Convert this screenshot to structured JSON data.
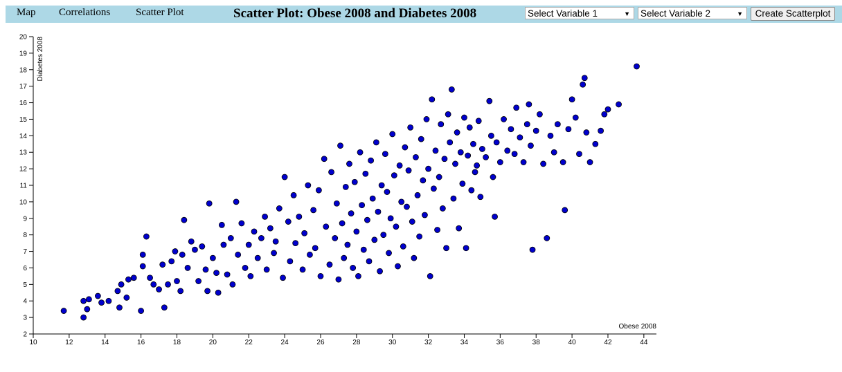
{
  "nav": {
    "map": "Map",
    "correlations": "Correlations",
    "scatter_plot": "Scatter Plot"
  },
  "title": "Scatter Plot: Obese 2008 and Diabetes 2008",
  "controls": {
    "select1": "Select Variable 1",
    "select2": "Select Variable 2",
    "create_button": "Create Scatterplot"
  },
  "colors": {
    "navbar": "#add8e6",
    "point_fill": "#0000cd",
    "point_stroke": "#000000"
  },
  "chart_data": {
    "type": "scatter",
    "xlabel": "Obese 2008",
    "ylabel": "Diabetes 2008",
    "xlim": [
      10,
      44.7
    ],
    "ylim": [
      2,
      20
    ],
    "x_ticks": [
      10,
      12,
      14,
      16,
      18,
      20,
      22,
      24,
      26,
      28,
      30,
      32,
      34,
      36,
      38,
      40,
      42,
      44
    ],
    "y_ticks": [
      2,
      3,
      4,
      5,
      6,
      7,
      8,
      9,
      10,
      11,
      12,
      13,
      14,
      15,
      16,
      17,
      18,
      19,
      20
    ],
    "grid": false,
    "series": [
      {
        "points": [
          [
            11.7,
            3.4
          ],
          [
            12.8,
            3.0
          ],
          [
            12.8,
            4.0
          ],
          [
            13.0,
            3.5
          ],
          [
            13.1,
            4.1
          ],
          [
            13.6,
            4.3
          ],
          [
            13.8,
            3.9
          ],
          [
            14.2,
            4.0
          ],
          [
            14.7,
            4.6
          ],
          [
            14.8,
            3.6
          ],
          [
            14.9,
            5.0
          ],
          [
            15.2,
            4.2
          ],
          [
            15.3,
            5.3
          ],
          [
            15.6,
            5.4
          ],
          [
            16.0,
            3.4
          ],
          [
            16.1,
            6.1
          ],
          [
            16.1,
            6.8
          ],
          [
            16.3,
            7.9
          ],
          [
            16.5,
            5.4
          ],
          [
            16.7,
            5.0
          ],
          [
            17.0,
            4.7
          ],
          [
            17.2,
            6.2
          ],
          [
            17.3,
            3.6
          ],
          [
            17.5,
            5.0
          ],
          [
            17.7,
            6.4
          ],
          [
            17.9,
            7.0
          ],
          [
            18.0,
            5.2
          ],
          [
            18.2,
            4.6
          ],
          [
            18.3,
            6.8
          ],
          [
            18.4,
            8.9
          ],
          [
            18.6,
            6.0
          ],
          [
            18.8,
            7.6
          ],
          [
            19.0,
            7.1
          ],
          [
            19.2,
            5.2
          ],
          [
            19.4,
            7.3
          ],
          [
            19.6,
            5.9
          ],
          [
            19.7,
            4.6
          ],
          [
            19.8,
            9.9
          ],
          [
            20.0,
            6.6
          ],
          [
            20.2,
            5.7
          ],
          [
            20.3,
            4.5
          ],
          [
            20.5,
            8.6
          ],
          [
            20.6,
            7.4
          ],
          [
            20.8,
            5.6
          ],
          [
            21.0,
            7.8
          ],
          [
            21.1,
            5.0
          ],
          [
            21.3,
            10.0
          ],
          [
            21.4,
            6.8
          ],
          [
            21.6,
            8.7
          ],
          [
            21.8,
            6.0
          ],
          [
            22.0,
            7.4
          ],
          [
            22.1,
            5.5
          ],
          [
            22.3,
            8.2
          ],
          [
            22.5,
            6.6
          ],
          [
            22.7,
            7.8
          ],
          [
            22.9,
            9.1
          ],
          [
            23.0,
            5.9
          ],
          [
            23.2,
            8.4
          ],
          [
            23.4,
            6.9
          ],
          [
            23.5,
            7.6
          ],
          [
            23.7,
            9.6
          ],
          [
            23.9,
            5.4
          ],
          [
            24.0,
            11.5
          ],
          [
            24.2,
            8.8
          ],
          [
            24.3,
            6.4
          ],
          [
            24.5,
            10.4
          ],
          [
            24.6,
            7.5
          ],
          [
            24.8,
            9.1
          ],
          [
            25.0,
            5.9
          ],
          [
            25.1,
            8.1
          ],
          [
            25.3,
            11.0
          ],
          [
            25.4,
            6.8
          ],
          [
            25.6,
            9.5
          ],
          [
            25.7,
            7.2
          ],
          [
            25.9,
            10.7
          ],
          [
            26.0,
            5.5
          ],
          [
            26.2,
            12.6
          ],
          [
            26.3,
            8.5
          ],
          [
            26.5,
            6.2
          ],
          [
            26.6,
            11.8
          ],
          [
            26.8,
            7.8
          ],
          [
            26.9,
            9.9
          ],
          [
            27.0,
            5.3
          ],
          [
            27.1,
            13.4
          ],
          [
            27.2,
            8.7
          ],
          [
            27.3,
            6.6
          ],
          [
            27.4,
            10.9
          ],
          [
            27.5,
            7.4
          ],
          [
            27.6,
            12.3
          ],
          [
            27.7,
            9.3
          ],
          [
            27.8,
            6.0
          ],
          [
            27.9,
            11.2
          ],
          [
            28.0,
            8.2
          ],
          [
            28.1,
            5.5
          ],
          [
            28.2,
            13.0
          ],
          [
            28.3,
            9.8
          ],
          [
            28.4,
            7.1
          ],
          [
            28.5,
            11.7
          ],
          [
            28.6,
            8.9
          ],
          [
            28.7,
            6.4
          ],
          [
            28.8,
            12.5
          ],
          [
            28.9,
            10.2
          ],
          [
            29.0,
            7.7
          ],
          [
            29.1,
            13.6
          ],
          [
            29.2,
            9.4
          ],
          [
            29.3,
            5.8
          ],
          [
            29.4,
            11.0
          ],
          [
            29.5,
            8.0
          ],
          [
            29.6,
            12.9
          ],
          [
            29.7,
            10.6
          ],
          [
            29.8,
            6.9
          ],
          [
            29.9,
            9.0
          ],
          [
            30.0,
            14.1
          ],
          [
            30.1,
            11.6
          ],
          [
            30.2,
            8.5
          ],
          [
            30.3,
            6.1
          ],
          [
            30.4,
            12.2
          ],
          [
            30.5,
            10.0
          ],
          [
            30.6,
            7.3
          ],
          [
            30.7,
            13.3
          ],
          [
            30.8,
            9.7
          ],
          [
            30.9,
            11.9
          ],
          [
            31.0,
            14.5
          ],
          [
            31.1,
            8.8
          ],
          [
            31.2,
            6.6
          ],
          [
            31.3,
            12.7
          ],
          [
            31.4,
            10.4
          ],
          [
            31.5,
            7.9
          ],
          [
            31.6,
            13.8
          ],
          [
            31.7,
            11.3
          ],
          [
            31.8,
            9.2
          ],
          [
            31.9,
            15.0
          ],
          [
            32.0,
            12.0
          ],
          [
            32.1,
            5.5
          ],
          [
            32.2,
            16.2
          ],
          [
            32.3,
            10.8
          ],
          [
            32.4,
            13.1
          ],
          [
            32.5,
            8.3
          ],
          [
            32.6,
            11.5
          ],
          [
            32.7,
            14.7
          ],
          [
            32.8,
            9.6
          ],
          [
            32.9,
            12.6
          ],
          [
            33.0,
            7.2
          ],
          [
            33.1,
            15.3
          ],
          [
            33.2,
            13.6
          ],
          [
            33.3,
            16.8
          ],
          [
            33.4,
            10.2
          ],
          [
            33.5,
            12.3
          ],
          [
            33.6,
            14.2
          ],
          [
            33.7,
            8.4
          ],
          [
            33.8,
            13.0
          ],
          [
            33.9,
            11.1
          ],
          [
            34.0,
            15.1
          ],
          [
            34.1,
            7.2
          ],
          [
            34.2,
            12.8
          ],
          [
            34.3,
            14.5
          ],
          [
            34.4,
            10.7
          ],
          [
            34.5,
            13.5
          ],
          [
            34.6,
            11.8
          ],
          [
            34.7,
            12.2
          ],
          [
            34.8,
            14.9
          ],
          [
            34.9,
            10.3
          ],
          [
            35.0,
            13.2
          ],
          [
            35.2,
            12.7
          ],
          [
            35.4,
            16.1
          ],
          [
            35.5,
            14.0
          ],
          [
            35.6,
            11.5
          ],
          [
            35.7,
            9.1
          ],
          [
            35.8,
            13.6
          ],
          [
            36.0,
            12.4
          ],
          [
            36.2,
            15.0
          ],
          [
            36.4,
            13.1
          ],
          [
            36.6,
            14.4
          ],
          [
            36.8,
            12.9
          ],
          [
            36.9,
            15.7
          ],
          [
            37.1,
            13.9
          ],
          [
            37.3,
            12.4
          ],
          [
            37.5,
            14.7
          ],
          [
            37.6,
            15.9
          ],
          [
            37.7,
            13.4
          ],
          [
            37.8,
            7.1
          ],
          [
            38.0,
            14.3
          ],
          [
            38.2,
            15.3
          ],
          [
            38.4,
            12.3
          ],
          [
            38.6,
            7.8
          ],
          [
            38.8,
            14.0
          ],
          [
            39.0,
            13.0
          ],
          [
            39.2,
            14.7
          ],
          [
            39.5,
            12.4
          ],
          [
            39.6,
            9.5
          ],
          [
            39.8,
            14.4
          ],
          [
            40.0,
            16.2
          ],
          [
            40.2,
            15.1
          ],
          [
            40.4,
            12.9
          ],
          [
            40.6,
            17.1
          ],
          [
            40.7,
            17.5
          ],
          [
            40.8,
            14.2
          ],
          [
            41.0,
            12.4
          ],
          [
            41.3,
            13.5
          ],
          [
            41.6,
            14.3
          ],
          [
            41.8,
            15.3
          ],
          [
            42.0,
            15.6
          ],
          [
            42.6,
            15.9
          ],
          [
            43.6,
            18.2
          ]
        ]
      }
    ]
  }
}
